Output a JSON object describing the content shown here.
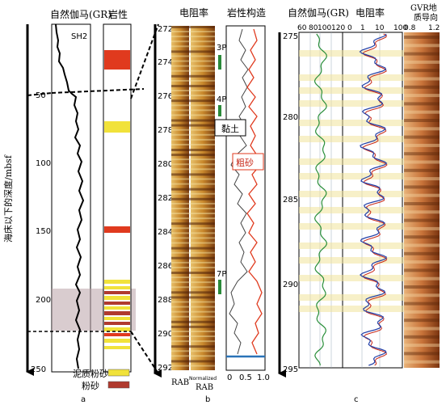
{
  "panel_a": {
    "header_gr": "自然伽马(GR)",
    "header_lith": "岩性",
    "well": "SH2",
    "axis_label": "海床以下的深度/mbsf",
    "ticks": [
      "50",
      "100",
      "150",
      "200",
      "250"
    ],
    "legend": [
      {
        "label": "泥质粉砂",
        "color": "#f1e23a"
      },
      {
        "label": "粉砂",
        "color": "#b03a2e"
      }
    ],
    "panel_label": "a"
  },
  "panel_b": {
    "header_res": "电阻率",
    "header_struct": "岩性构造",
    "ticks": [
      "272",
      "274",
      "276",
      "278",
      "280",
      "282",
      "284",
      "286",
      "288",
      "290",
      "292"
    ],
    "markers": [
      "3P",
      "4P",
      "7P"
    ],
    "box_clay": "黏土",
    "box_sand": "粗砂",
    "footer_rab": "RAB",
    "footer_normalized": "Normalized",
    "footer_rab2": "RAB",
    "x_ticks": [
      "0",
      "0.5",
      "1.0"
    ],
    "panel_label": "b"
  },
  "panel_c": {
    "header_gr": "自然伽马(GR)",
    "header_res": "电阻率",
    "header_gvr_1": "GVR地",
    "header_gvr_2": "质导向",
    "gr_ticks": [
      "60",
      "80",
      "100",
      "120"
    ],
    "res_ticks": [
      "0",
      "1",
      "10",
      "100"
    ],
    "gvr_ticks": [
      "0.8",
      "1.2"
    ],
    "depth_ticks": [
      "275",
      "280",
      "285",
      "290",
      "295"
    ],
    "panel_label": "c"
  },
  "colors": {
    "sand": "#e03a1e",
    "silt_yellow": "#f1e23a",
    "silt_red": "#b03a2e",
    "highlight": "#f4ecb0",
    "gr_green": "#2a8f3a",
    "res_blue": "#2340a8",
    "marker_green": "#2a8a3a",
    "baseline_blue": "#2a73b8"
  }
}
